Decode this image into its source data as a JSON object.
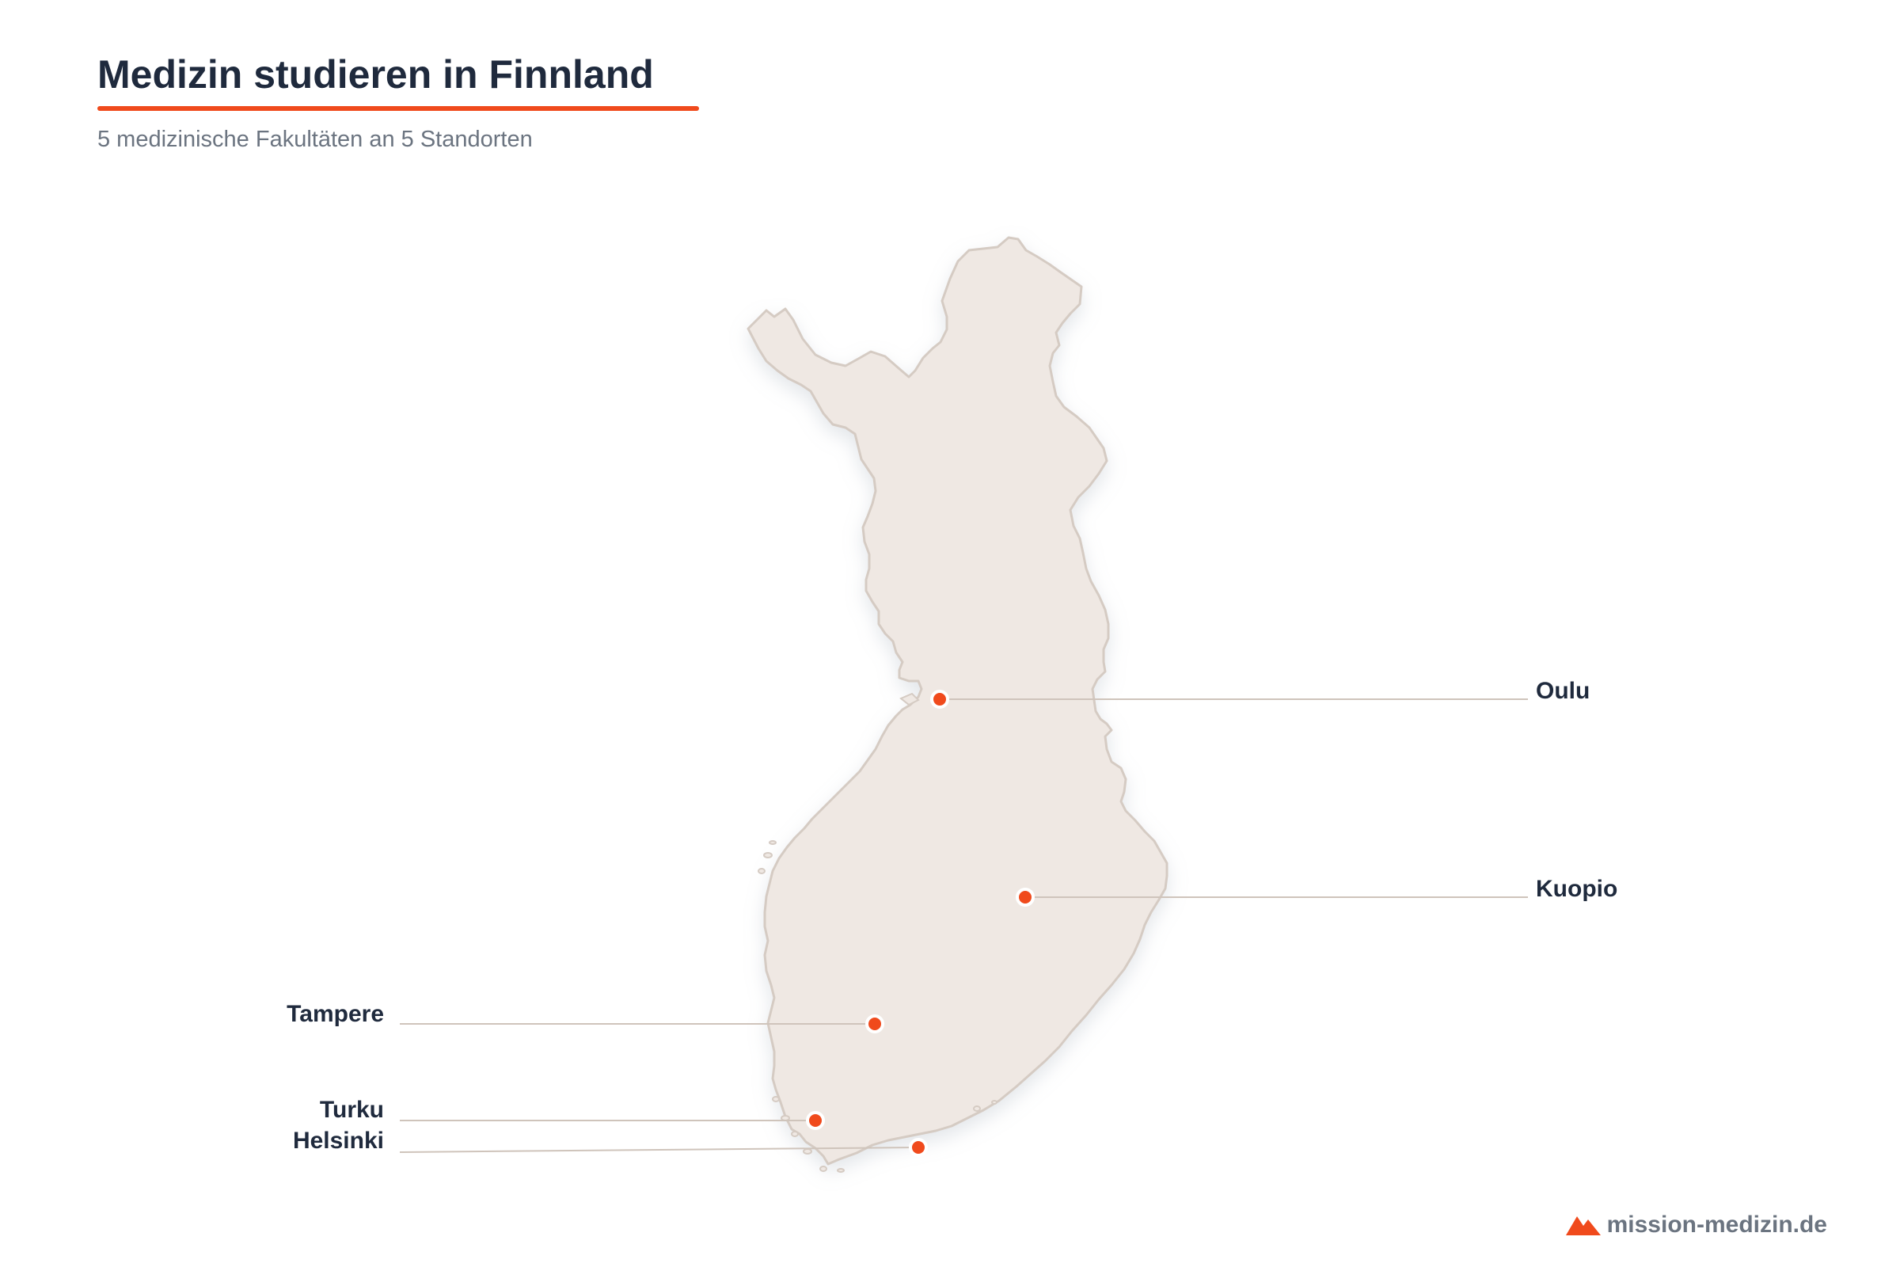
{
  "header": {
    "title": "Medizin studieren in Finnland",
    "subtitle": "5 medizinische Fakultäten an 5 Standorten"
  },
  "map": {
    "region": "Finnland",
    "land_color": "#efe8e3",
    "outline_color": "#d5cbc3",
    "marker_color": "#f04a1c",
    "leader_color": "#cfc4bb"
  },
  "cities": [
    {
      "id": "oulu",
      "label": "Oulu"
    },
    {
      "id": "kuopio",
      "label": "Kuopio"
    },
    {
      "id": "tampere",
      "label": "Tampere"
    },
    {
      "id": "turku",
      "label": "Turku"
    },
    {
      "id": "helsinki",
      "label": "Helsinki"
    }
  ],
  "brand": {
    "text": "mission-medizin.de",
    "icon": "mountain-logo-icon"
  }
}
